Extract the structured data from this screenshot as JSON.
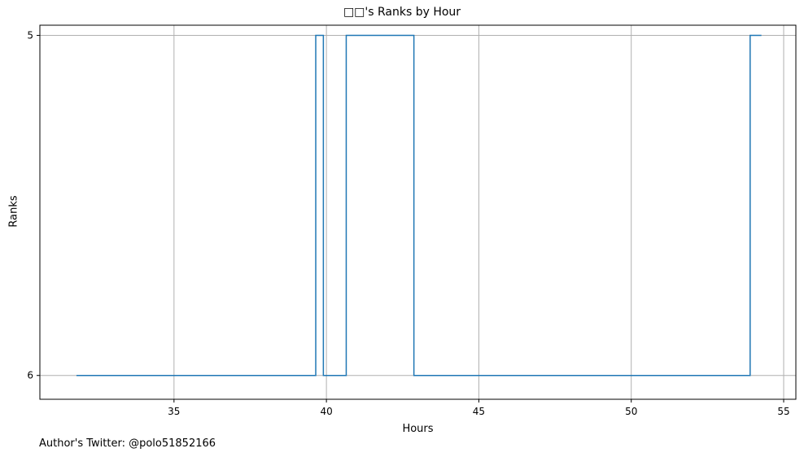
{
  "chart_data": {
    "type": "line",
    "drawstyle": "steps-post",
    "title": "□□'s Ranks by Hour",
    "xlabel": "Hours",
    "ylabel": "Ranks",
    "xlim": [
      30.6,
      55.4
    ],
    "ylim": [
      6.07,
      4.97
    ],
    "y_inverted": true,
    "grid": true,
    "x_ticks": [
      35,
      40,
      45,
      50,
      55
    ],
    "y_ticks": [
      5,
      6
    ],
    "color": "#1f77b4",
    "series": [
      {
        "x": [
          31.8,
          39.65,
          39.9,
          40.65,
          42.87,
          53.9,
          54.27
        ],
        "y": [
          6,
          5,
          6,
          5,
          6,
          5,
          5
        ]
      }
    ]
  },
  "footer_text": "Author's Twitter: @polo51852166"
}
